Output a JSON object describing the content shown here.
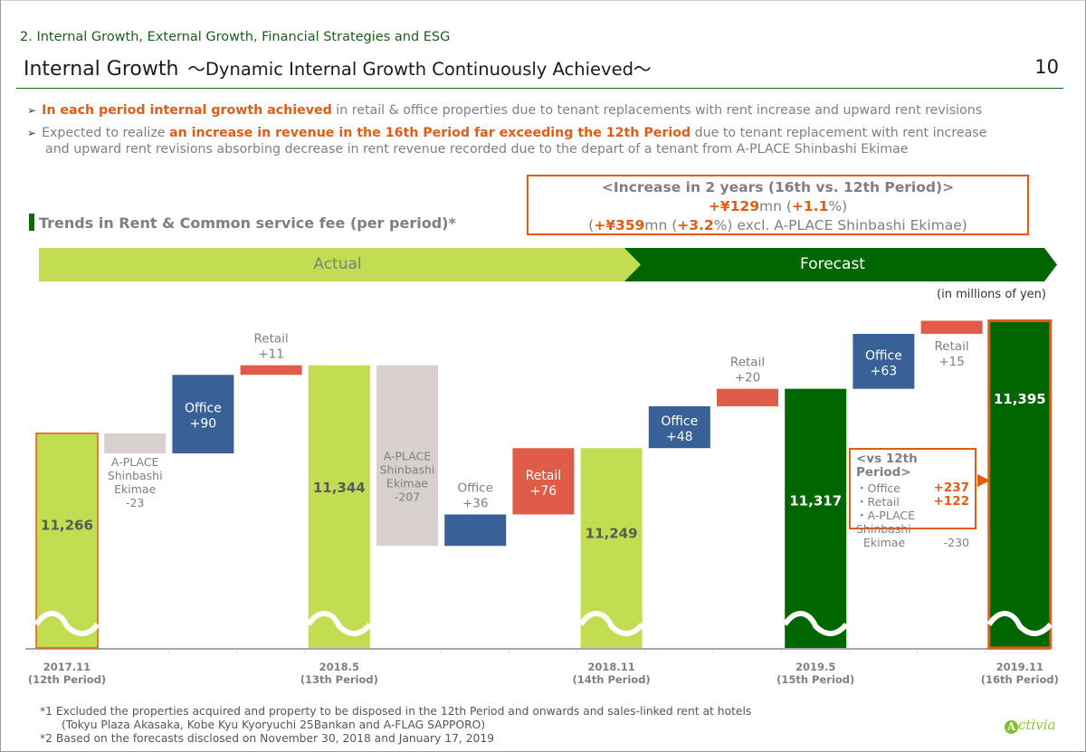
{
  "header": {
    "section": "2. Internal Growth, External Growth, Financial Strategies and ESG",
    "title": "Internal Growth",
    "subtitle": "～Dynamic Internal Growth Continuously Achieved～",
    "page_number": "10"
  },
  "bullets": [
    {
      "highlight": "In each period internal growth achieved",
      "rest": " in retail & office properties due to tenant replacements with rent increase and upward rent revisions"
    },
    {
      "pre": "Expected to realize ",
      "highlight": "an increase in revenue in the 16th Period far exceeding the 12th Period",
      "rest": " due to tenant replacement with rent increase",
      "cont": "and upward rent revisions absorbing decrease in rent revenue recorded due to the depart of a tenant from A-PLACE Shinbashi Ekimae"
    }
  ],
  "increase_box": {
    "title": "<Increase in 2 years  (16th vs. 12th Period)>",
    "line2_amount": "+¥129",
    "line2_unit": "mn (",
    "line2_pct": "+1.1",
    "line2_end": "%)",
    "line3_open": "(",
    "line3_amount": "+¥359",
    "line3_unit": "mn (",
    "line3_pct": "+3.2",
    "line3_end": "%) excl. A-PLACE Shinbashi Ekimae)"
  },
  "bands": {
    "actual": "Actual",
    "forecast": "Forecast"
  },
  "units_label": "(in millions of yen)",
  "colors": {
    "actual_total": "#c3dd52",
    "forecast_total": "#006600",
    "office": "#3a6098",
    "retail": "#e05c48",
    "aplace": "#d8d0cf",
    "accent": "#e35b14"
  },
  "vs_box": {
    "title": "<vs 12th Period>",
    "rows": [
      {
        "label": "・Office",
        "value": "+237"
      },
      {
        "label": "・Retail",
        "value": "+122"
      },
      {
        "label": "・A-PLACE Shinbashi",
        "value": ""
      },
      {
        "label": "Ekimae",
        "value": "-230"
      }
    ]
  },
  "footnotes": {
    "fn1": "*1  Excluded the properties acquired and property to be disposed in the 12th Period and onwards and sales-linked rent at hotels",
    "fn1b": "(Tokyu Plaza Akasaka, Kobe Kyu Kyoryuchi 25Bankan and A-FLAG SAPPORO)",
    "fn2": "*2  Based on the forecasts disclosed on November 30, 2018 and January 17, 2019"
  },
  "logo": {
    "initial": "A",
    "text": "ctivia"
  },
  "chart_data": {
    "type": "bar",
    "subtype": "waterfall",
    "title": "Trends in Rent & Common service fee (per period)*",
    "unit": "millions of yen",
    "y_axis_broken": true,
    "categories": [
      "2017.11\n(12th Period)",
      "",
      "",
      "",
      "2018.5\n(13th Period)",
      "",
      "",
      "",
      "2018.11\n(14th Period)",
      "",
      "",
      "2019.5\n(15th Period)",
      "",
      "",
      "2019.11\n(16th Period)"
    ],
    "steps": [
      {
        "kind": "total",
        "phase": "actual",
        "value": 11266,
        "label": "11,266",
        "x_label": "2017.11",
        "x_sub": "(12th Period)",
        "highlight": true
      },
      {
        "kind": "aplace",
        "value": -23,
        "label": "A-PLACE\nShinbashi\nEkimae\n-23"
      },
      {
        "kind": "office",
        "value": 90,
        "label": "Office\n+90"
      },
      {
        "kind": "retail",
        "value": 11,
        "label": "Retail\n+11"
      },
      {
        "kind": "total",
        "phase": "actual",
        "value": 11344,
        "label": "11,344",
        "x_label": "2018.5",
        "x_sub": "(13th Period)"
      },
      {
        "kind": "aplace",
        "value": -207,
        "label": "A-PLACE\nShinbashi\nEkimae\n-207"
      },
      {
        "kind": "office",
        "value": 36,
        "label": "Office\n+36"
      },
      {
        "kind": "retail",
        "value": 76,
        "label": "Retail\n+76"
      },
      {
        "kind": "total",
        "phase": "actual",
        "value": 11249,
        "label": "11,249",
        "x_label": "2018.11",
        "x_sub": "(14th Period)"
      },
      {
        "kind": "office",
        "value": 48,
        "label": "Office\n+48"
      },
      {
        "kind": "retail",
        "value": 20,
        "label": "Retail\n+20"
      },
      {
        "kind": "total",
        "phase": "forecast",
        "value": 11317,
        "label": "11,317",
        "x_label": "2019.5",
        "x_sub": "(15th Period)"
      },
      {
        "kind": "office",
        "value": 63,
        "label": "Office\n+63"
      },
      {
        "kind": "retail",
        "value": 15,
        "label": "Retail\n+15"
      },
      {
        "kind": "total",
        "phase": "forecast",
        "value": 11395,
        "label": "11,395",
        "x_label": "2019.11",
        "x_sub": "(16th Period)",
        "highlight": true
      }
    ],
    "ylim_visible": [
      11020,
      11410
    ]
  }
}
